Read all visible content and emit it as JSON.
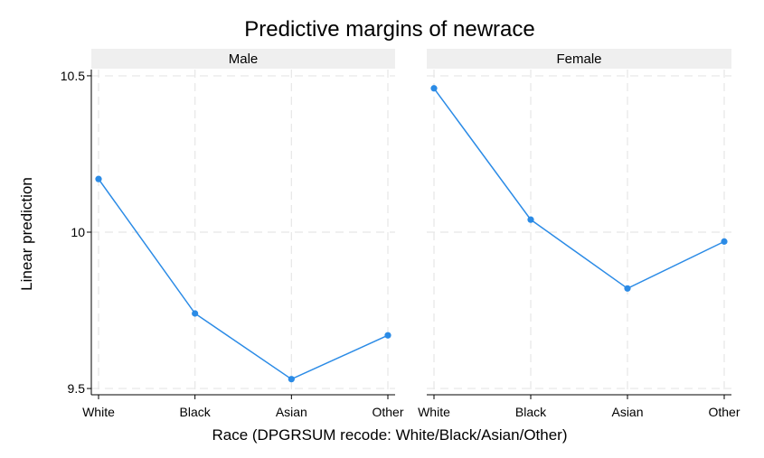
{
  "chart_data": {
    "type": "line",
    "title": "Predictive margins of newrace",
    "xlabel": "Race (DPGRSUM recode: White/Black/Asian/Other)",
    "ylabel": "Linear prediction",
    "categories": [
      "White",
      "Black",
      "Asian",
      "Other"
    ],
    "ylim": [
      9.48,
      10.52
    ],
    "yticks": [
      9.5,
      10,
      10.5
    ],
    "ytick_labels": [
      "9.5",
      "10",
      "10.5"
    ],
    "grid": true,
    "line_color": "#2b8be6",
    "strip_color": "#efefef",
    "panels": [
      {
        "name": "Male",
        "values": [
          10.17,
          9.74,
          9.53,
          9.67
        ]
      },
      {
        "name": "Female",
        "values": [
          10.46,
          10.04,
          9.82,
          9.97
        ]
      }
    ]
  }
}
